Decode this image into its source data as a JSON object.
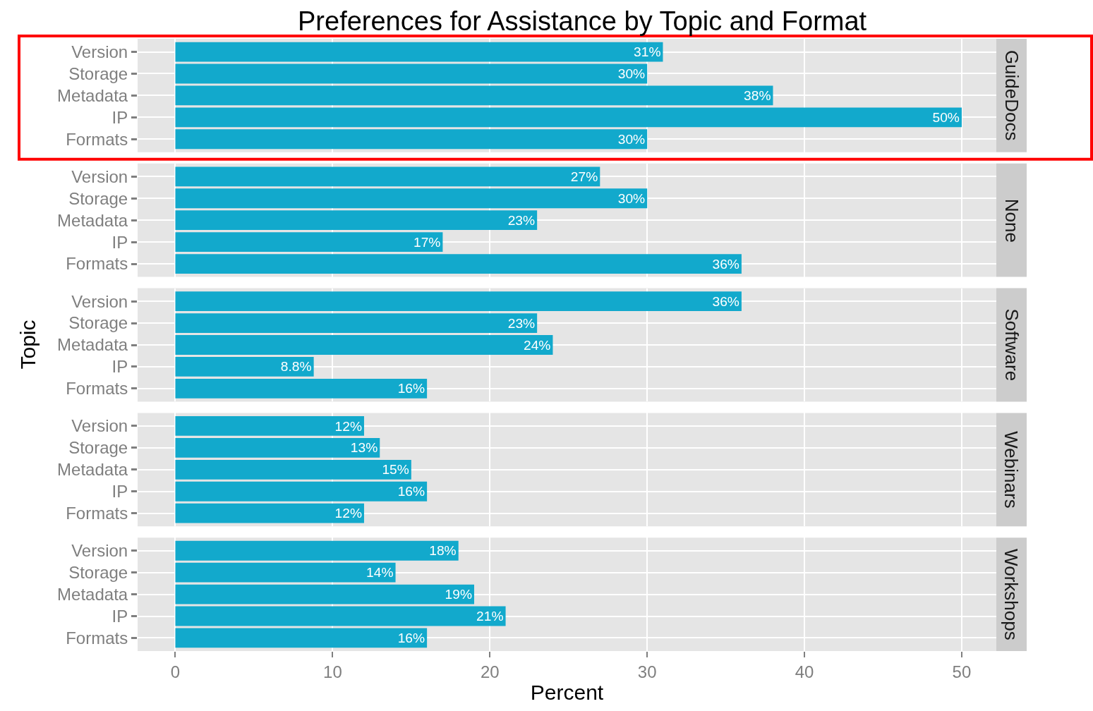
{
  "chart_data": [
    {
      "type": "bar",
      "orientation": "horizontal",
      "title": "Preferences for Assistance by Topic and Format",
      "subtitle": "GuideDocs",
      "categories": [
        "Version",
        "Storage",
        "Metadata",
        "IP",
        "Formats"
      ],
      "values": [
        31,
        30,
        38,
        50,
        30
      ],
      "value_labels": [
        "31%",
        "30%",
        "38%",
        "50%",
        "30%"
      ],
      "color": "#12a9cc",
      "xlim": [
        -2.4,
        52.2
      ],
      "xticks": [
        0,
        10,
        20,
        30,
        40,
        50
      ],
      "grid": true,
      "tick_labels": "y"
    },
    {
      "type": "bar",
      "orientation": "horizontal",
      "subtitle": "None",
      "categories": [
        "Version",
        "Storage",
        "Metadata",
        "IP",
        "Formats"
      ],
      "values": [
        27,
        30,
        23,
        17,
        36
      ],
      "value_labels": [
        "27%",
        "30%",
        "23%",
        "17%",
        "36%"
      ],
      "color": "#12a9cc",
      "xlim": [
        -2.4,
        52.2
      ],
      "xticks": [
        0,
        10,
        20,
        30,
        40,
        50
      ],
      "grid": true,
      "tick_labels": "y"
    },
    {
      "type": "bar",
      "orientation": "horizontal",
      "subtitle": "Software",
      "ylabel": "Topic",
      "categories": [
        "Version",
        "Storage",
        "Metadata",
        "IP",
        "Formats"
      ],
      "values": [
        36,
        23,
        24,
        8.8,
        16
      ],
      "value_labels": [
        "36%",
        "23%",
        "24%",
        "8.8%",
        "16%"
      ],
      "color": "#12a9cc",
      "xlim": [
        -2.4,
        52.2
      ],
      "xticks": [
        0,
        10,
        20,
        30,
        40,
        50
      ],
      "grid": true,
      "tick_labels": "y"
    },
    {
      "type": "bar",
      "orientation": "horizontal",
      "subtitle": "Webinars",
      "categories": [
        "Version",
        "Storage",
        "Metadata",
        "IP",
        "Formats"
      ],
      "values": [
        12,
        13,
        15,
        16,
        12
      ],
      "value_labels": [
        "12%",
        "13%",
        "15%",
        "16%",
        "12%"
      ],
      "color": "#12a9cc",
      "xlim": [
        -2.4,
        52.2
      ],
      "xticks": [
        0,
        10,
        20,
        30,
        40,
        50
      ],
      "grid": true,
      "tick_labels": "y"
    },
    {
      "type": "bar",
      "orientation": "horizontal",
      "subtitle": "Workshops",
      "xlabel": "Percent",
      "categories": [
        "Version",
        "Storage",
        "Metadata",
        "IP",
        "Formats"
      ],
      "values": [
        18,
        14,
        19,
        21,
        16
      ],
      "value_labels": [
        "18%",
        "14%",
        "19%",
        "21%",
        "16%"
      ],
      "color": "#12a9cc",
      "xlim": [
        -2.4,
        52.2
      ],
      "xticks": [
        0,
        10,
        20,
        30,
        40,
        50
      ],
      "grid": true
    }
  ]
}
